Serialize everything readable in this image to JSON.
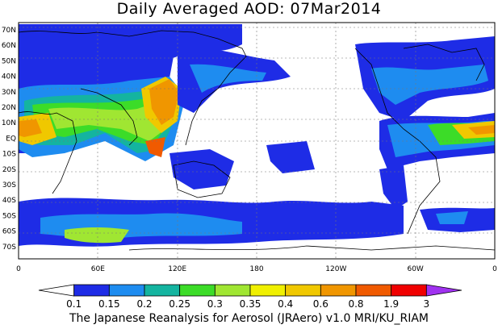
{
  "title": "Daily Averaged AOD: 07Mar2014",
  "credit": "The Japanese Reanalysis for Aerosol (JRAero) v1.0 MRI/KU_RIAM",
  "map": {
    "lat_labels": [
      "70N",
      "60N",
      "50N",
      "40N",
      "30N",
      "20N",
      "10N",
      "EQ",
      "10S",
      "20S",
      "30S",
      "40S",
      "50S",
      "60S",
      "70S"
    ],
    "lon_labels": [
      "0",
      "60E",
      "120E",
      "180",
      "120W",
      "60W",
      "0"
    ]
  },
  "colorbar": {
    "colors": [
      "#ffffff",
      "#1e2ce6",
      "#1e8cf0",
      "#14b4a0",
      "#3cdc28",
      "#a0e632",
      "#f0f000",
      "#f0c800",
      "#f09600",
      "#f05a00",
      "#f00000",
      "#a032f0"
    ],
    "labels": [
      "0.1",
      "0.15",
      "0.2",
      "0.25",
      "0.3",
      "0.35",
      "0.4",
      "0.6",
      "0.8",
      "1.9",
      "3"
    ]
  }
}
